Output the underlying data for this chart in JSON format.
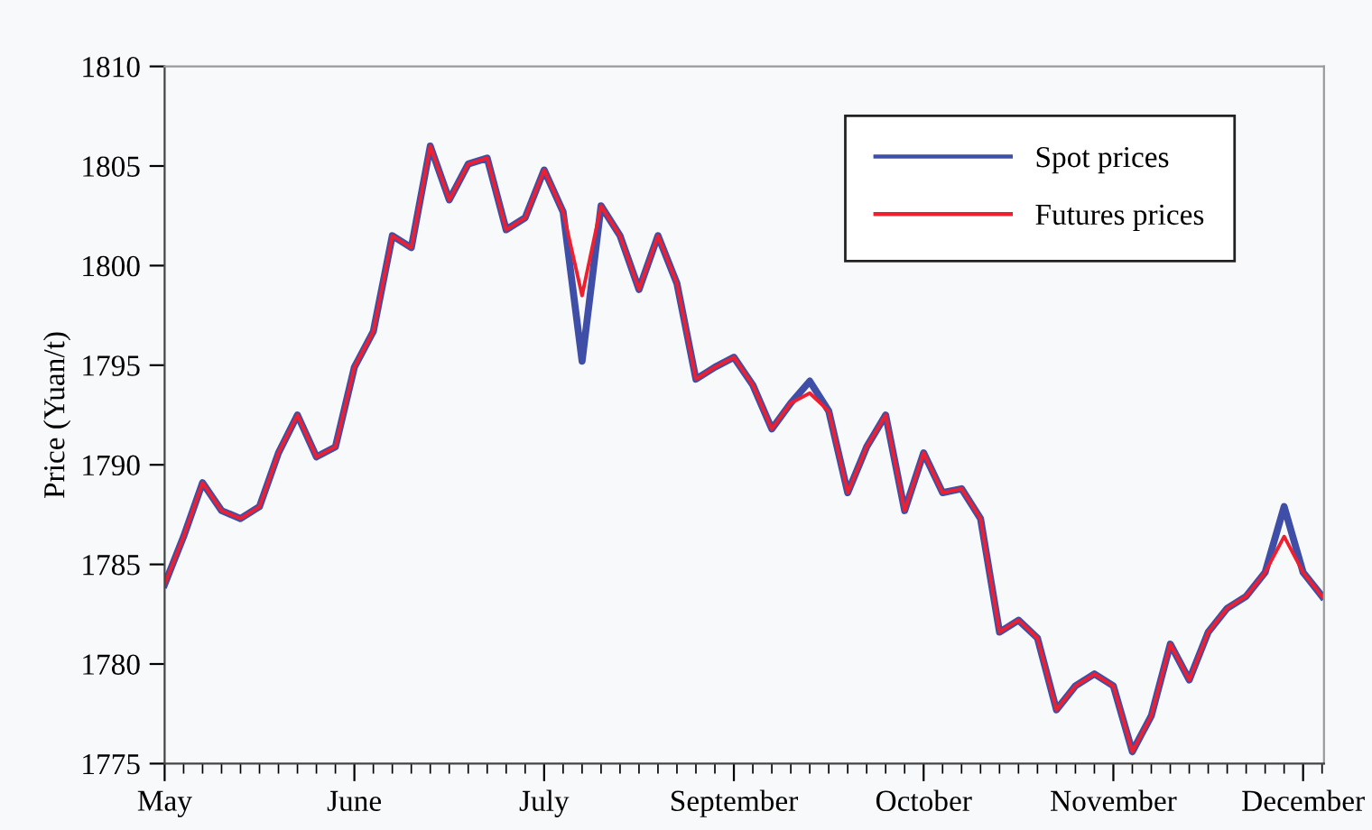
{
  "chart_data": {
    "type": "line",
    "ylabel": "Price (Yuan/t)",
    "ylim": [
      1775,
      1810
    ],
    "yticks": [
      1775,
      1780,
      1785,
      1790,
      1795,
      1800,
      1805,
      1810
    ],
    "categories": [
      "May",
      null,
      null,
      null,
      null,
      null,
      null,
      null,
      null,
      null,
      "June",
      null,
      null,
      null,
      null,
      null,
      null,
      null,
      null,
      null,
      "July",
      null,
      null,
      null,
      null,
      null,
      null,
      null,
      null,
      null,
      "September",
      null,
      null,
      null,
      null,
      null,
      null,
      null,
      null,
      null,
      "October",
      null,
      null,
      null,
      null,
      null,
      null,
      null,
      null,
      null,
      "November",
      null,
      null,
      null,
      null,
      null,
      null,
      null,
      null,
      null,
      "December",
      null
    ],
    "grid": false,
    "legend": "top right",
    "marker": "none",
    "line_style": "solid",
    "series": [
      {
        "name": "Spot prices",
        "color": "#3f4fa8",
        "values": [
          1784.0,
          1786.4,
          1789.1,
          1787.7,
          1787.3,
          1787.9,
          1790.6,
          1792.5,
          1790.4,
          1790.9,
          1794.9,
          1796.7,
          1801.5,
          1800.9,
          1806.0,
          1803.3,
          1805.1,
          1805.4,
          1801.8,
          1802.4,
          1804.8,
          1802.7,
          1795.2,
          1803.0,
          1801.5,
          1798.8,
          1801.5,
          1799.1,
          1794.3,
          1794.9,
          1795.4,
          1794.0,
          1791.8,
          1793.1,
          1794.2,
          1792.7,
          1788.6,
          1790.9,
          1792.5,
          1787.7,
          1790.6,
          1788.6,
          1788.8,
          1787.3,
          1781.6,
          1782.2,
          1781.3,
          1777.7,
          1778.9,
          1779.5,
          1778.9,
          1775.6,
          1777.4,
          1781.0,
          1779.2,
          1781.6,
          1782.8,
          1783.4,
          1784.6,
          1787.9,
          1784.6,
          1783.4
        ]
      },
      {
        "name": "Futures prices",
        "color": "#ee2030",
        "values": [
          1784.0,
          1786.4,
          1789.1,
          1787.7,
          1787.3,
          1787.9,
          1790.6,
          1792.5,
          1790.4,
          1790.9,
          1794.9,
          1796.7,
          1801.5,
          1800.9,
          1806.0,
          1803.3,
          1805.1,
          1805.4,
          1801.8,
          1802.4,
          1804.8,
          1802.7,
          1798.5,
          1803.0,
          1801.5,
          1798.8,
          1801.5,
          1799.1,
          1794.3,
          1794.9,
          1795.4,
          1794.0,
          1791.8,
          1793.1,
          1793.6,
          1792.7,
          1788.6,
          1790.9,
          1792.5,
          1787.7,
          1790.6,
          1788.6,
          1788.8,
          1787.3,
          1781.6,
          1782.2,
          1781.3,
          1777.7,
          1778.9,
          1779.5,
          1778.9,
          1775.6,
          1777.4,
          1781.0,
          1779.2,
          1781.6,
          1782.8,
          1783.4,
          1784.6,
          1786.4,
          1784.6,
          1783.4
        ]
      }
    ]
  }
}
